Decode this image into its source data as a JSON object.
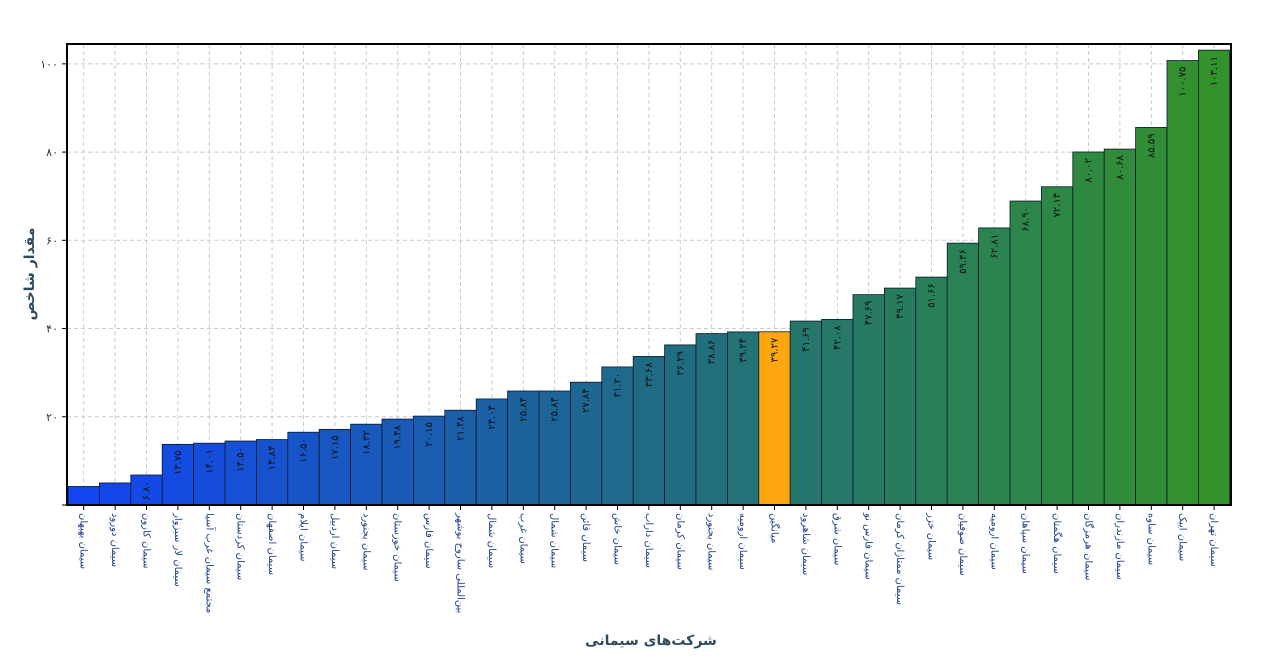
{
  "chart_data": {
    "type": "bar",
    "title": "",
    "xlabel": "شرکت‌های سیمانی",
    "ylabel": "مقدار شاخص",
    "y_tick_labels": [
      "۲۰",
      "۴۰",
      "۶۰",
      "۸۰",
      "۱۰۰"
    ],
    "y_tick_values": [
      20,
      40,
      60,
      80,
      100
    ],
    "ylim": [
      0,
      104.5
    ],
    "grid": true,
    "categories": [
      "سیمان بهبهان",
      "سیمان دورود",
      "سیمان کارون",
      "سیمان لار سبزوار",
      "مجتمع سیمان غرب آسیا",
      "سیمان کردستان",
      "سیمان اصفهان",
      "سیمان ایلام",
      "سیمان اردبیل",
      "سیمان بجنورد",
      "سیمان خوزستان",
      "سیمان فارس",
      "بین‌المللی ساروج بوشهر",
      "سیمان شمال",
      "سیمان غرب",
      "سیمان شمال",
      "سیمان قائن",
      "سیمان خاش",
      "سیمان داراب",
      "سیمان کرمان",
      "سیمان بجنورد",
      "سیمان ارومیه",
      "میانگین",
      "سیمان شاهرود",
      "سیمان شرق",
      "سیمان فارس نو",
      "سیمان ممتازان کرمان",
      "سیمان خزر",
      "سیمان صوفیان",
      "سیمان ارومیه",
      "سیمان سپاهان",
      "سیمان هگمتان",
      "سیمان هرمزگان",
      "سیمان مازندران",
      "سیمان ساوه",
      "سیمان ایبک",
      "سیمان تهران"
    ],
    "values": [
      4.2,
      5.0,
      6.8,
      13.75,
      14.01,
      14.5,
      14.84,
      16.5,
      17.15,
      18.32,
      19.48,
      20.15,
      21.48,
      24.04,
      25.84,
      25.84,
      27.84,
      31.3,
      33.68,
      36.29,
      38.86,
      39.24,
      39.27,
      41.69,
      42.08,
      47.69,
      49.17,
      51.66,
      59.36,
      62.81,
      68.9,
      72.14,
      80.02,
      80.68,
      85.59,
      100.75,
      103.11
    ],
    "value_labels": [
      "",
      "",
      "۶.۸۰",
      "۱۳.۷۵",
      "۱۴.۰۱",
      "۱۴.۵۰",
      "۱۴.۸۴",
      "۱۶.۵۰",
      "۱۷.۱۵",
      "۱۸.۳۲",
      "۱۹.۴۸",
      "۲۰.۱۵",
      "۲۱.۴۸",
      "۲۴.۰۴",
      "۲۵.۸۴",
      "۲۵.۸۴",
      "۲۷.۸۴",
      "۳۱.۳۰",
      "۳۳.۶۸",
      "۳۶.۲۹",
      "۳۸.۸۶",
      "۳۹.۲۴",
      "۳۹.۲۷",
      "۴۱.۶۹",
      "۴۲.۰۸",
      "۴۷.۶۹",
      "۴۹.۱۷",
      "۵۱.۶۶",
      "۵۹.۳۶",
      "۶۲.۸۱",
      "۶۸.۹۰",
      "۷۲.۱۴",
      "۸۰.۰۲",
      "۸۰.۶۸",
      "۸۵.۵۹",
      "۱۰۰.۷۵",
      "۱۰۳.۱۱"
    ],
    "highlight_category": "میانگین",
    "colors": {
      "highlight": "#ffa510",
      "gradient_start": "#1245f2",
      "gradient_mid": "#1f6b86",
      "gradient_end": "#33922c",
      "grid": "#c4ccd4",
      "axis": "#000000",
      "bar_edge": "#0a1a2a"
    }
  }
}
